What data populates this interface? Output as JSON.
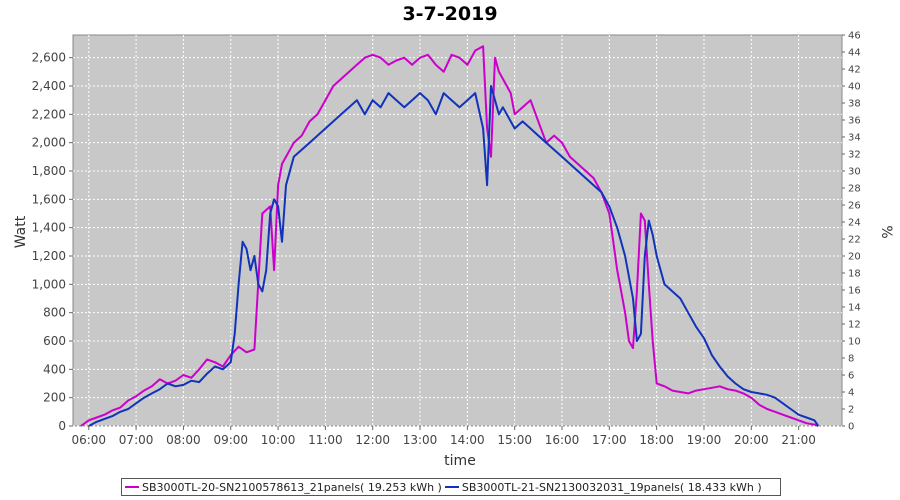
{
  "chart_data": {
    "type": "line",
    "title": "3-7-2019",
    "xlabel": "time",
    "ylabel": "Watt",
    "ylabel_right": "%",
    "x_ticks": [
      "06:00",
      "07:00",
      "08:00",
      "09:00",
      "10:00",
      "11:00",
      "12:00",
      "13:00",
      "14:00",
      "15:00",
      "16:00",
      "17:00",
      "18:00",
      "19:00",
      "20:00",
      "21:00"
    ],
    "xlim": [
      "05:40",
      "21:55"
    ],
    "ylim": [
      0,
      2760
    ],
    "y_ticks": [
      0,
      200,
      400,
      600,
      800,
      1000,
      1200,
      1400,
      1600,
      1800,
      2000,
      2200,
      2400,
      2600
    ],
    "y_tick_labels": [
      "0",
      "200",
      "400",
      "600",
      "800",
      "1,000",
      "1,200",
      "1,400",
      "1,600",
      "1,800",
      "2,000",
      "2,200",
      "2,400",
      "2,600"
    ],
    "ylim_right": [
      0,
      46
    ],
    "y_ticks_right": [
      0,
      2,
      4,
      6,
      8,
      10,
      12,
      14,
      16,
      18,
      20,
      22,
      24,
      26,
      28,
      30,
      32,
      34,
      36,
      38,
      40,
      42,
      44,
      46
    ],
    "grid": true,
    "legend_position": "bottom",
    "background_color": "#c8c8c8",
    "series": [
      {
        "name": "SB3000TL-20-SN2100578613_21panels( 19.253 kWh )",
        "color": "#cc00cc",
        "x": [
          "05:50",
          "06:00",
          "06:10",
          "06:20",
          "06:30",
          "06:40",
          "06:50",
          "07:00",
          "07:10",
          "07:20",
          "07:30",
          "07:40",
          "07:50",
          "08:00",
          "08:10",
          "08:20",
          "08:30",
          "08:40",
          "08:50",
          "09:00",
          "09:10",
          "09:20",
          "09:30",
          "09:40",
          "09:50",
          "09:55",
          "10:00",
          "10:05",
          "10:10",
          "10:15",
          "10:20",
          "10:30",
          "10:40",
          "10:50",
          "11:00",
          "11:10",
          "11:20",
          "11:30",
          "11:40",
          "11:50",
          "12:00",
          "12:10",
          "12:20",
          "12:30",
          "12:40",
          "12:50",
          "13:00",
          "13:10",
          "13:20",
          "13:30",
          "13:40",
          "13:50",
          "14:00",
          "14:10",
          "14:20",
          "14:25",
          "14:30",
          "14:35",
          "14:40",
          "14:45",
          "14:50",
          "14:55",
          "15:00",
          "15:10",
          "15:20",
          "15:30",
          "15:40",
          "15:50",
          "16:00",
          "16:10",
          "16:20",
          "16:30",
          "16:40",
          "16:50",
          "17:00",
          "17:05",
          "17:10",
          "17:15",
          "17:20",
          "17:25",
          "17:30",
          "17:35",
          "17:40",
          "17:45",
          "17:50",
          "17:55",
          "18:00",
          "18:10",
          "18:20",
          "18:30",
          "18:40",
          "18:50",
          "19:00",
          "19:10",
          "19:20",
          "19:30",
          "19:40",
          "19:50",
          "20:00",
          "20:10",
          "20:20",
          "20:30",
          "20:40",
          "20:50",
          "21:00",
          "21:10",
          "21:20",
          "21:25"
        ],
        "values": [
          0,
          40,
          60,
          80,
          110,
          130,
          180,
          210,
          250,
          280,
          330,
          300,
          320,
          360,
          340,
          400,
          470,
          450,
          420,
          500,
          560,
          520,
          540,
          1500,
          1550,
          1100,
          1700,
          1850,
          1900,
          1950,
          2000,
          2050,
          2150,
          2200,
          2300,
          2400,
          2450,
          2500,
          2550,
          2600,
          2620,
          2600,
          2550,
          2580,
          2600,
          2550,
          2600,
          2620,
          2550,
          2500,
          2620,
          2600,
          2550,
          2650,
          2680,
          2100,
          1900,
          2600,
          2500,
          2450,
          2400,
          2350,
          2200,
          2250,
          2300,
          2150,
          2000,
          2050,
          2000,
          1900,
          1850,
          1800,
          1750,
          1650,
          1500,
          1300,
          1100,
          950,
          800,
          600,
          550,
          950,
          1500,
          1450,
          1000,
          600,
          300,
          280,
          250,
          240,
          230,
          250,
          260,
          270,
          280,
          260,
          250,
          230,
          200,
          150,
          120,
          100,
          80,
          60,
          40,
          20,
          10,
          0
        ]
      },
      {
        "name": "SB3000TL-21-SN2130032031_19panels( 18.433 kWh )",
        "color": "#1133bb",
        "x": [
          "06:00",
          "06:10",
          "06:20",
          "06:30",
          "06:40",
          "06:50",
          "07:00",
          "07:10",
          "07:20",
          "07:30",
          "07:40",
          "07:50",
          "08:00",
          "08:10",
          "08:20",
          "08:30",
          "08:40",
          "08:50",
          "09:00",
          "09:05",
          "09:10",
          "09:15",
          "09:20",
          "09:25",
          "09:30",
          "09:35",
          "09:40",
          "09:45",
          "09:50",
          "09:55",
          "10:00",
          "10:05",
          "10:10",
          "10:15",
          "10:20",
          "10:30",
          "10:40",
          "10:50",
          "11:00",
          "11:10",
          "11:20",
          "11:30",
          "11:40",
          "11:50",
          "12:00",
          "12:10",
          "12:20",
          "12:30",
          "12:40",
          "12:50",
          "13:00",
          "13:10",
          "13:20",
          "13:30",
          "13:40",
          "13:50",
          "14:00",
          "14:10",
          "14:20",
          "14:25",
          "14:30",
          "14:35",
          "14:40",
          "14:45",
          "14:50",
          "14:55",
          "15:00",
          "15:10",
          "15:20",
          "15:30",
          "15:40",
          "15:50",
          "16:00",
          "16:10",
          "16:20",
          "16:30",
          "16:40",
          "16:50",
          "17:00",
          "17:10",
          "17:20",
          "17:30",
          "17:35",
          "17:40",
          "17:45",
          "17:50",
          "17:55",
          "18:00",
          "18:10",
          "18:20",
          "18:30",
          "18:40",
          "18:50",
          "19:00",
          "19:10",
          "19:20",
          "19:30",
          "19:40",
          "19:50",
          "20:00",
          "20:10",
          "20:20",
          "20:30",
          "20:40",
          "20:50",
          "21:00",
          "21:10",
          "21:20",
          "21:25"
        ],
        "values": [
          0,
          30,
          50,
          70,
          100,
          120,
          160,
          200,
          230,
          260,
          300,
          280,
          290,
          320,
          310,
          370,
          420,
          400,
          450,
          650,
          1000,
          1300,
          1250,
          1100,
          1200,
          1000,
          950,
          1100,
          1500,
          1600,
          1550,
          1300,
          1700,
          1800,
          1900,
          1950,
          2000,
          2050,
          2100,
          2150,
          2200,
          2250,
          2300,
          2200,
          2300,
          2250,
          2350,
          2300,
          2250,
          2300,
          2350,
          2300,
          2200,
          2350,
          2300,
          2250,
          2300,
          2350,
          2100,
          1700,
          2400,
          2300,
          2200,
          2250,
          2200,
          2150,
          2100,
          2150,
          2100,
          2050,
          2000,
          1950,
          1900,
          1850,
          1800,
          1750,
          1700,
          1650,
          1550,
          1400,
          1200,
          900,
          600,
          650,
          1200,
          1450,
          1350,
          1200,
          1000,
          950,
          900,
          800,
          700,
          620,
          500,
          420,
          350,
          300,
          260,
          240,
          230,
          220,
          200,
          160,
          120,
          80,
          60,
          40,
          0
        ]
      }
    ]
  }
}
